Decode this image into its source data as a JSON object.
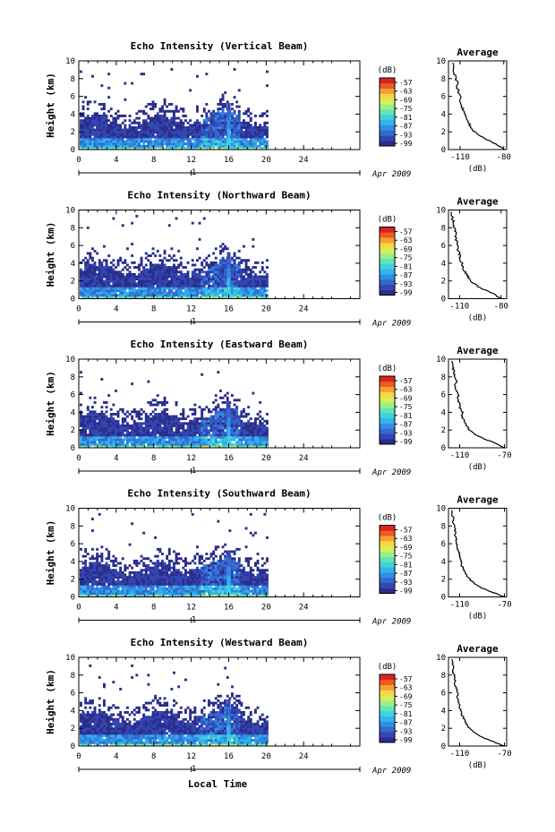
{
  "figure": {
    "xlabel": "Local Time",
    "day_label": "1",
    "month_label": "Apr 2009",
    "ylabel": "Height (km)",
    "colorbar_unit": "(dB)",
    "avg_title": "Average",
    "avg_xlabel": "(dB)",
    "colormap": [
      "#2b2d8a",
      "#3346b2",
      "#3568d0",
      "#2f8fe4",
      "#33b4ec",
      "#3fd3de",
      "#5fe6b8",
      "#9fef86",
      "#d6ef5a",
      "#f7d744",
      "#f7a032",
      "#ee5a24",
      "#d8241c"
    ],
    "empty_color": "#ffffff"
  },
  "chart_data": [
    {
      "type": "heatmap",
      "title": "Echo Intensity (Vertical Beam)",
      "xlabel": "",
      "ylabel": "Height (km)",
      "xlim": [
        0,
        30
      ],
      "ylim": [
        0,
        10
      ],
      "xticks": [
        0,
        4,
        8,
        12,
        16,
        20,
        24
      ],
      "yticks": [
        0,
        2,
        4,
        6,
        8,
        10
      ],
      "colorbar_ticks": [
        -57,
        -63,
        -69,
        -75,
        -81,
        -87,
        -93,
        -99
      ],
      "data_end_hour": 20,
      "spike_hour": 16,
      "spike_top_km": 5.3,
      "avg_profile": {
        "title": "Average",
        "xlabel": "(dB)",
        "xticks": [
          -110,
          -80
        ],
        "xlim": [
          -118,
          -78
        ],
        "heights": [
          0,
          0.5,
          1,
          1.5,
          2,
          2.5,
          3,
          3.5,
          4,
          4.5,
          5,
          5.5,
          6,
          6.5,
          7,
          7.5,
          8,
          8.5,
          9,
          9.5
        ],
        "values": [
          -80,
          -84,
          -90,
          -96,
          -100,
          -103,
          -104,
          -106,
          -107,
          -108,
          -109,
          -110,
          -110,
          -111,
          -112,
          -112,
          -113,
          -114,
          -114,
          -115
        ]
      }
    },
    {
      "type": "heatmap",
      "title": "Echo Intensity (Northward Beam)",
      "xlabel": "",
      "ylabel": "Height (km)",
      "xlim": [
        0,
        30
      ],
      "ylim": [
        0,
        10
      ],
      "xticks": [
        0,
        4,
        8,
        12,
        16,
        20,
        24
      ],
      "yticks": [
        0,
        2,
        4,
        6,
        8,
        10
      ],
      "colorbar_ticks": [
        -57,
        -63,
        -69,
        -75,
        -81,
        -87,
        -93,
        -99
      ],
      "data_end_hour": 20,
      "spike_hour": 16,
      "spike_top_km": 5.3,
      "avg_profile": {
        "title": "Average",
        "xlabel": "(dB)",
        "xticks": [
          -110,
          -80
        ],
        "xlim": [
          -118,
          -76
        ],
        "heights": [
          0,
          0.5,
          1,
          1.5,
          2,
          2.5,
          3,
          3.5,
          4,
          4.5,
          5,
          5.5,
          6,
          6.5,
          7,
          7.5,
          8,
          8.5,
          9,
          9.5
        ],
        "values": [
          -80,
          -85,
          -92,
          -98,
          -102,
          -104,
          -106,
          -108,
          -108,
          -110,
          -110,
          -111,
          -112,
          -112,
          -113,
          -113,
          -114,
          -114,
          -115,
          -116
        ]
      }
    },
    {
      "type": "heatmap",
      "title": "Echo Intensity (Eastward Beam)",
      "xlabel": "",
      "ylabel": "Height (km)",
      "xlim": [
        0,
        30
      ],
      "ylim": [
        0,
        10
      ],
      "xticks": [
        0,
        4,
        8,
        12,
        16,
        20,
        24
      ],
      "yticks": [
        0,
        2,
        4,
        6,
        8,
        10
      ],
      "colorbar_ticks": [
        -57,
        -63,
        -69,
        -75,
        -81,
        -87,
        -93,
        -99
      ],
      "data_end_hour": 20,
      "spike_hour": 16,
      "spike_top_km": 5.4,
      "avg_profile": {
        "title": "Average",
        "xlabel": "(dB)",
        "xticks": [
          -110,
          -70
        ],
        "xlim": [
          -120,
          -68
        ],
        "heights": [
          0,
          0.5,
          1,
          1.5,
          2,
          2.5,
          3,
          3.5,
          4,
          4.5,
          5,
          5.5,
          6,
          6.5,
          7,
          7.5,
          8,
          8.5,
          9,
          9.5
        ],
        "values": [
          -70,
          -78,
          -88,
          -96,
          -101,
          -104,
          -106,
          -108,
          -107,
          -110,
          -110,
          -112,
          -111,
          -113,
          -114,
          -113,
          -115,
          -115,
          -116,
          -117
        ]
      }
    },
    {
      "type": "heatmap",
      "title": "Echo Intensity (Southward Beam)",
      "xlabel": "",
      "ylabel": "Height (km)",
      "xlim": [
        0,
        30
      ],
      "ylim": [
        0,
        10
      ],
      "xticks": [
        0,
        4,
        8,
        12,
        16,
        20,
        24
      ],
      "yticks": [
        0,
        2,
        4,
        6,
        8,
        10
      ],
      "colorbar_ticks": [
        -57,
        -63,
        -69,
        -75,
        -81,
        -87,
        -93,
        -99
      ],
      "data_end_hour": 20,
      "spike_hour": 16,
      "spike_top_km": 5.3,
      "avg_profile": {
        "title": "Average",
        "xlabel": "(dB)",
        "xticks": [
          -110,
          -70
        ],
        "xlim": [
          -120,
          -68
        ],
        "heights": [
          0,
          0.5,
          1,
          1.5,
          2,
          2.5,
          3,
          3.5,
          4,
          4.5,
          5,
          5.5,
          6,
          6.5,
          7,
          7.5,
          8,
          8.5,
          9,
          9.5
        ],
        "values": [
          -70,
          -80,
          -90,
          -97,
          -101,
          -104,
          -106,
          -108,
          -109,
          -110,
          -110,
          -112,
          -113,
          -113,
          -114,
          -114,
          -115,
          -116,
          -116,
          -117
        ]
      }
    },
    {
      "type": "heatmap",
      "title": "Echo Intensity (Westward Beam)",
      "xlabel": "Local Time",
      "ylabel": "Height (km)",
      "xlim": [
        0,
        30
      ],
      "ylim": [
        0,
        10
      ],
      "xticks": [
        0,
        4,
        8,
        12,
        16,
        20,
        24
      ],
      "yticks": [
        0,
        2,
        4,
        6,
        8,
        10
      ],
      "colorbar_ticks": [
        -57,
        -63,
        -69,
        -75,
        -81,
        -87,
        -93,
        -99
      ],
      "data_end_hour": 20,
      "spike_hour": 16,
      "spike_top_km": 5.4,
      "avg_profile": {
        "title": "Average",
        "xlabel": "(dB)",
        "xticks": [
          -110,
          -70
        ],
        "xlim": [
          -120,
          -68
        ],
        "heights": [
          0,
          0.5,
          1,
          1.5,
          2,
          2.5,
          3,
          3.5,
          4,
          4.5,
          5,
          5.5,
          6,
          6.5,
          7,
          7.5,
          8,
          8.5,
          9,
          9.5
        ],
        "values": [
          -70,
          -80,
          -90,
          -97,
          -101,
          -104,
          -106,
          -108,
          -109,
          -110,
          -111,
          -112,
          -112,
          -113,
          -114,
          -114,
          -115,
          -116,
          -116,
          -117
        ]
      }
    }
  ]
}
